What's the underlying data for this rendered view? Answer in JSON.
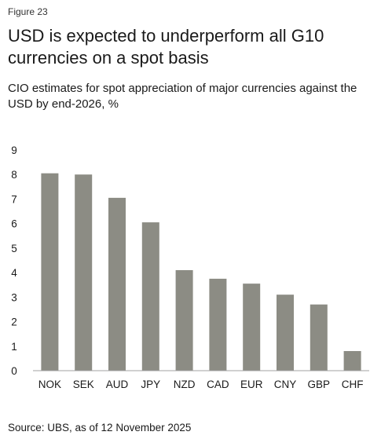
{
  "figure_label": "Figure 23",
  "title": "USD is expected to underperform all G10 currencies on a spot basis",
  "subtitle": "CIO estimates for spot appreciation of major currencies against the USD by end-2026, %",
  "source": "Source: UBS, as of 12 November 2025",
  "colors": {
    "bar": "#8c8c84",
    "axis": "#a0a0a0"
  },
  "chart_data": {
    "type": "bar",
    "categories": [
      "NOK",
      "SEK",
      "AUD",
      "JPY",
      "NZD",
      "CAD",
      "EUR",
      "CNY",
      "GBP",
      "CHF"
    ],
    "values": [
      8.05,
      8.0,
      7.05,
      6.05,
      4.1,
      3.75,
      3.55,
      3.1,
      2.7,
      0.8
    ],
    "y_ticks": [
      "0",
      "1",
      "2",
      "3",
      "4",
      "5",
      "6",
      "7",
      "8",
      "9"
    ],
    "ylim": [
      0,
      9
    ],
    "grid": false
  }
}
